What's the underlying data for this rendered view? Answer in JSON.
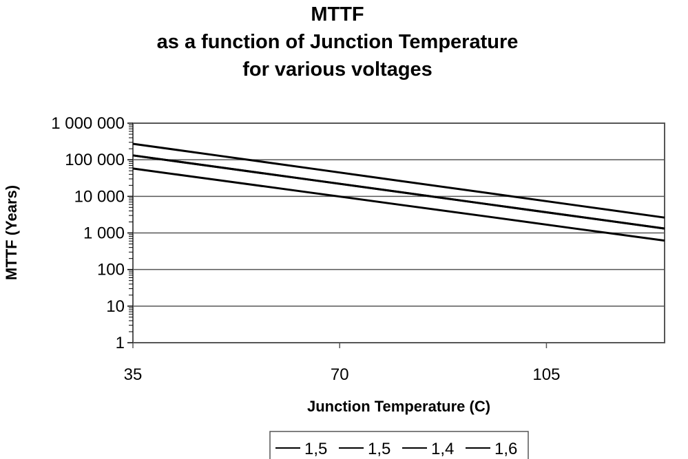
{
  "chart_data": {
    "type": "line",
    "title": [
      "MTTF",
      "as a function of Junction Temperature",
      "for various voltages"
    ],
    "xlabel": "Junction Temperature (C)",
    "ylabel": "MTTF (Years)",
    "xlim": [
      35,
      125
    ],
    "ylim": [
      1,
      1000000
    ],
    "yscale": "log",
    "grid": true,
    "legend_position": "bottom",
    "x_ticks": [
      35,
      70,
      105
    ],
    "x_tick_labels": [
      "35",
      "70",
      "105"
    ],
    "y_ticks": [
      1,
      10,
      100,
      1000,
      10000,
      100000,
      1000000
    ],
    "y_tick_labels": [
      "1",
      "10",
      "100",
      "1 000",
      "10 000",
      "100 000",
      "1 000 000"
    ],
    "x": [
      35,
      50,
      65,
      80,
      95,
      110,
      125
    ],
    "series": [
      {
        "name": "1,5",
        "color": "#000000",
        "values": [
          132000,
          61200,
          28400,
          13200,
          6120,
          2840,
          1320
        ]
      },
      {
        "name": "1,5",
        "color": "#000000",
        "values": [
          132000,
          61200,
          28400,
          13200,
          6120,
          2840,
          1320
        ]
      },
      {
        "name": "1,4",
        "color": "#000000",
        "values": [
          273000,
          126000,
          58000,
          26800,
          12400,
          5700,
          2630
        ]
      },
      {
        "name": "1,6",
        "color": "#000000",
        "values": [
          57500,
          27000,
          12700,
          5960,
          2800,
          1310,
          617
        ]
      }
    ]
  }
}
